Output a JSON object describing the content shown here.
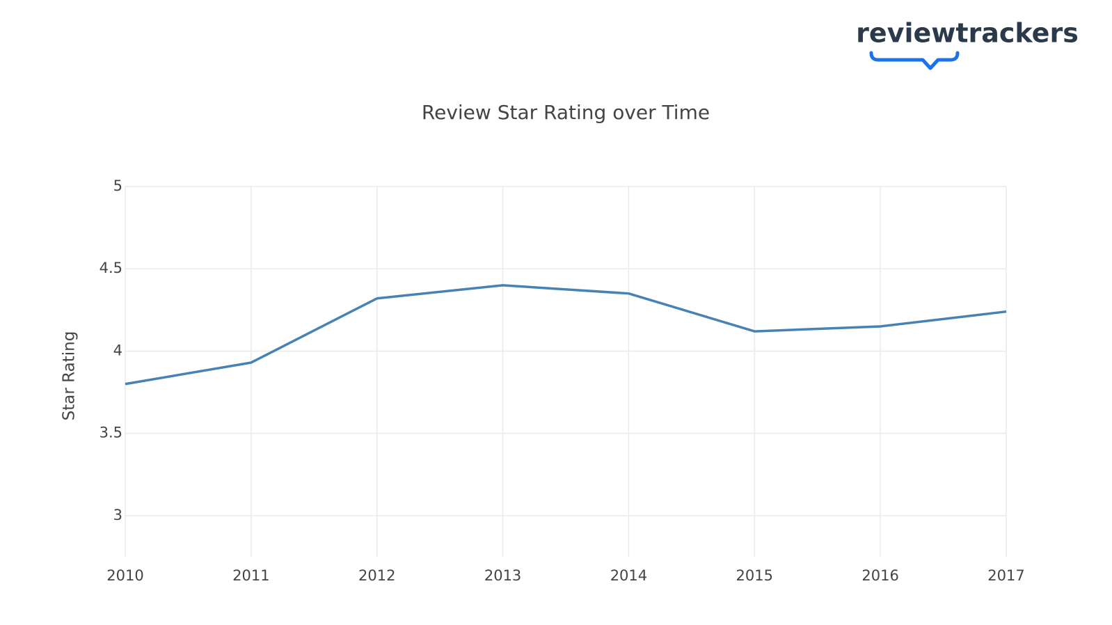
{
  "logo": "reviewtrackers",
  "chart_data": {
    "type": "line",
    "title": "Review Star Rating over Time",
    "y_label": "Star Rating",
    "x": [
      2010,
      2011,
      2012,
      2013,
      2014,
      2015,
      2016,
      2017
    ],
    "series": [
      {
        "name": "Star Rating",
        "color": "#4682b4",
        "values": [
          3.8,
          3.93,
          4.32,
          4.4,
          4.35,
          4.12,
          4.15,
          4.24
        ]
      }
    ],
    "xlim": [
      2010,
      2017
    ],
    "xticks": [
      2010,
      2011,
      2012,
      2013,
      2014,
      2015,
      2016,
      2017
    ],
    "ylim": [
      2.75,
      5
    ],
    "yticks": [
      3,
      3.5,
      4,
      4.5,
      5
    ],
    "grid": true
  }
}
